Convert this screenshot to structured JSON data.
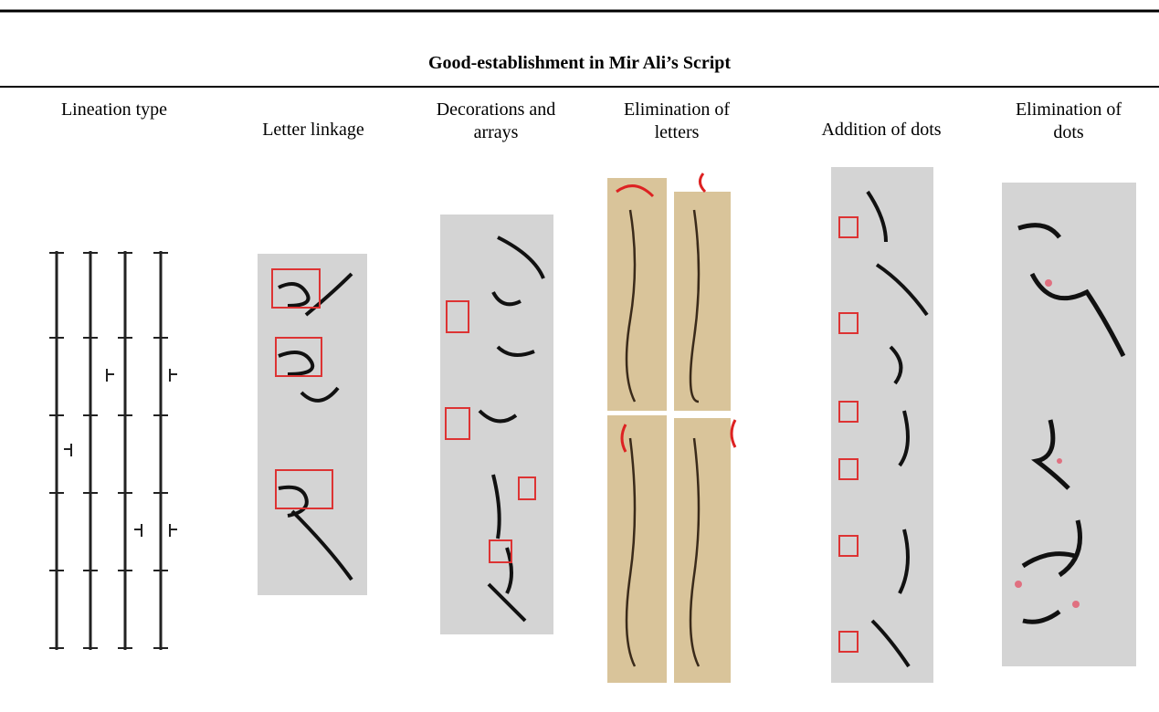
{
  "table": {
    "title": "Good-establishment in Mir Ali’s Script",
    "columns": [
      "Lineation type",
      "Letter linkage",
      "Decorations and arrays",
      "Elimination of letters",
      "Addition of dots",
      "Elimination of dots"
    ]
  }
}
